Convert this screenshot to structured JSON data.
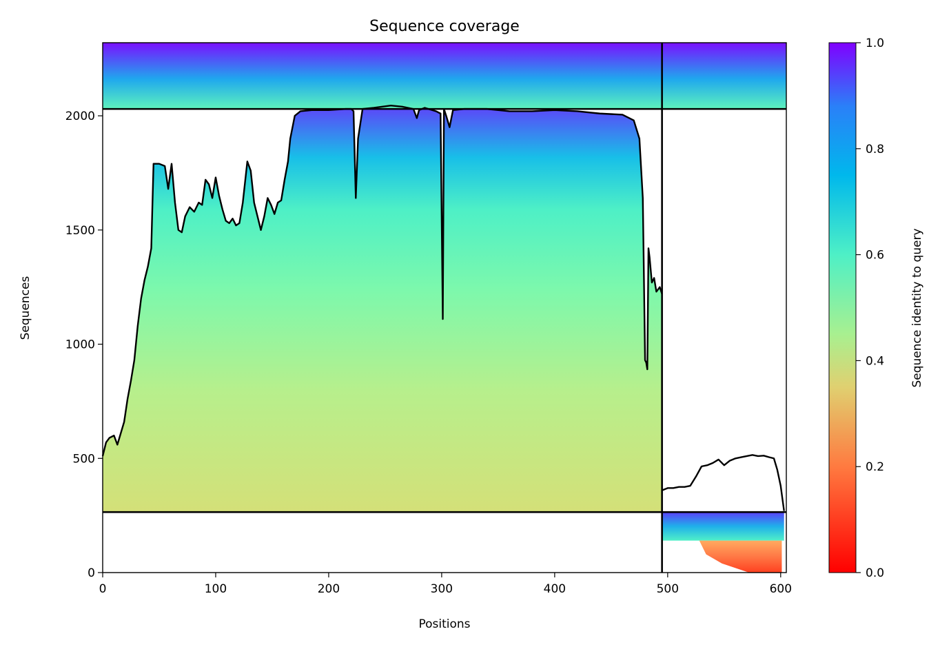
{
  "chart_data": {
    "type": "heatmap",
    "title": "Sequence coverage",
    "xlabel": "Positions",
    "ylabel": "Sequences",
    "xlim": [
      0,
      605
    ],
    "ylim": [
      0,
      2320
    ],
    "xticks": [
      0,
      100,
      200,
      300,
      400,
      500,
      600
    ],
    "yticks": [
      0,
      500,
      1000,
      1500,
      2000
    ],
    "colorbar": {
      "label": "Sequence identity to query",
      "range": [
        0,
        1
      ],
      "ticks": [
        0.0,
        0.2,
        0.4,
        0.6,
        0.8,
        1.0
      ],
      "colormap": "rainbow_r"
    },
    "block_divider_positions": [
      495
    ],
    "block_divider_sequences": [
      265,
      2030
    ],
    "coverage_series": [
      {
        "segment": 1,
        "x": [
          0,
          3,
          6,
          10,
          13,
          16,
          19,
          22,
          25,
          28,
          31,
          34,
          37,
          40,
          43,
          45,
          50,
          55,
          58,
          61,
          64,
          67,
          70,
          73,
          77,
          81,
          85,
          88,
          91,
          94,
          97,
          100,
          103,
          106,
          109,
          112,
          115,
          118,
          121,
          124,
          128,
          131,
          134,
          137,
          140,
          143,
          146,
          149,
          152,
          155,
          158,
          161,
          164,
          166,
          170,
          175,
          185,
          200,
          215,
          220,
          222,
          224,
          226,
          230,
          240,
          255,
          265,
          275,
          278,
          280,
          285,
          295,
          299,
          301,
          302,
          304,
          307,
          310,
          320,
          340,
          360,
          380,
          400,
          420,
          440,
          460,
          470,
          475,
          478,
          480,
          481,
          482,
          483,
          484,
          486,
          488,
          490,
          493,
          495
        ],
        "y": [
          510,
          570,
          590,
          600,
          560,
          610,
          660,
          760,
          840,
          930,
          1080,
          1200,
          1280,
          1340,
          1420,
          1790,
          1790,
          1780,
          1680,
          1790,
          1620,
          1500,
          1490,
          1560,
          1600,
          1580,
          1620,
          1610,
          1720,
          1700,
          1640,
          1730,
          1650,
          1590,
          1540,
          1530,
          1550,
          1520,
          1530,
          1620,
          1800,
          1760,
          1620,
          1560,
          1500,
          1560,
          1640,
          1610,
          1570,
          1620,
          1630,
          1720,
          1800,
          1900,
          2000,
          2020,
          2025,
          2025,
          2030,
          2030,
          2020,
          1640,
          1900,
          2030,
          2035,
          2045,
          2040,
          2030,
          1990,
          2025,
          2035,
          2020,
          2010,
          1110,
          2030,
          2000,
          1950,
          2025,
          2030,
          2030,
          2020,
          2020,
          2025,
          2020,
          2010,
          2005,
          1980,
          1900,
          1640,
          930,
          920,
          890,
          1420,
          1380,
          1270,
          1290,
          1230,
          1250,
          1220
        ]
      },
      {
        "segment": 2,
        "x": [
          495,
          500,
          505,
          510,
          515,
          520,
          525,
          530,
          535,
          540,
          545,
          550,
          555,
          560,
          565,
          570,
          575,
          580,
          585,
          590,
          594,
          597,
          600,
          603
        ],
        "y": [
          360,
          370,
          370,
          375,
          375,
          380,
          420,
          465,
          470,
          480,
          495,
          470,
          490,
          500,
          505,
          510,
          515,
          510,
          512,
          505,
          500,
          450,
          380,
          270
        ]
      }
    ]
  }
}
